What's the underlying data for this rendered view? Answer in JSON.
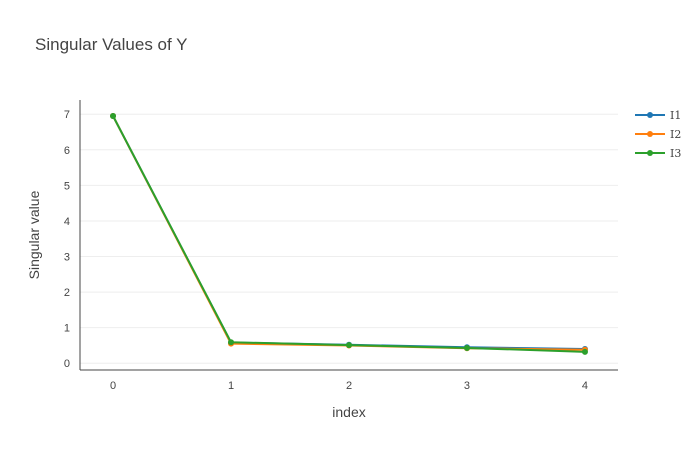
{
  "chart_data": {
    "type": "line",
    "title": "Singular Values of Y",
    "xlabel": "index",
    "ylabel": "Singular value",
    "x": [
      0,
      1,
      2,
      3,
      4
    ],
    "xlim": [
      -0.28,
      4.28
    ],
    "ylim": [
      -0.19,
      7.4
    ],
    "x_ticks": [
      0,
      1,
      2,
      3,
      4
    ],
    "y_ticks": [
      0,
      1,
      2,
      3,
      4,
      5,
      6,
      7
    ],
    "grid": "horizontal",
    "legend_position": "top-right",
    "series": [
      {
        "name": "I1",
        "color": "#1f77b4",
        "values": [
          6.95,
          0.58,
          0.52,
          0.45,
          0.4
        ]
      },
      {
        "name": "I2",
        "color": "#ff7f0e",
        "values": [
          6.95,
          0.55,
          0.5,
          0.42,
          0.38
        ]
      },
      {
        "name": "I3",
        "color": "#2ca02c",
        "values": [
          6.95,
          0.59,
          0.51,
          0.43,
          0.32
        ]
      }
    ]
  }
}
